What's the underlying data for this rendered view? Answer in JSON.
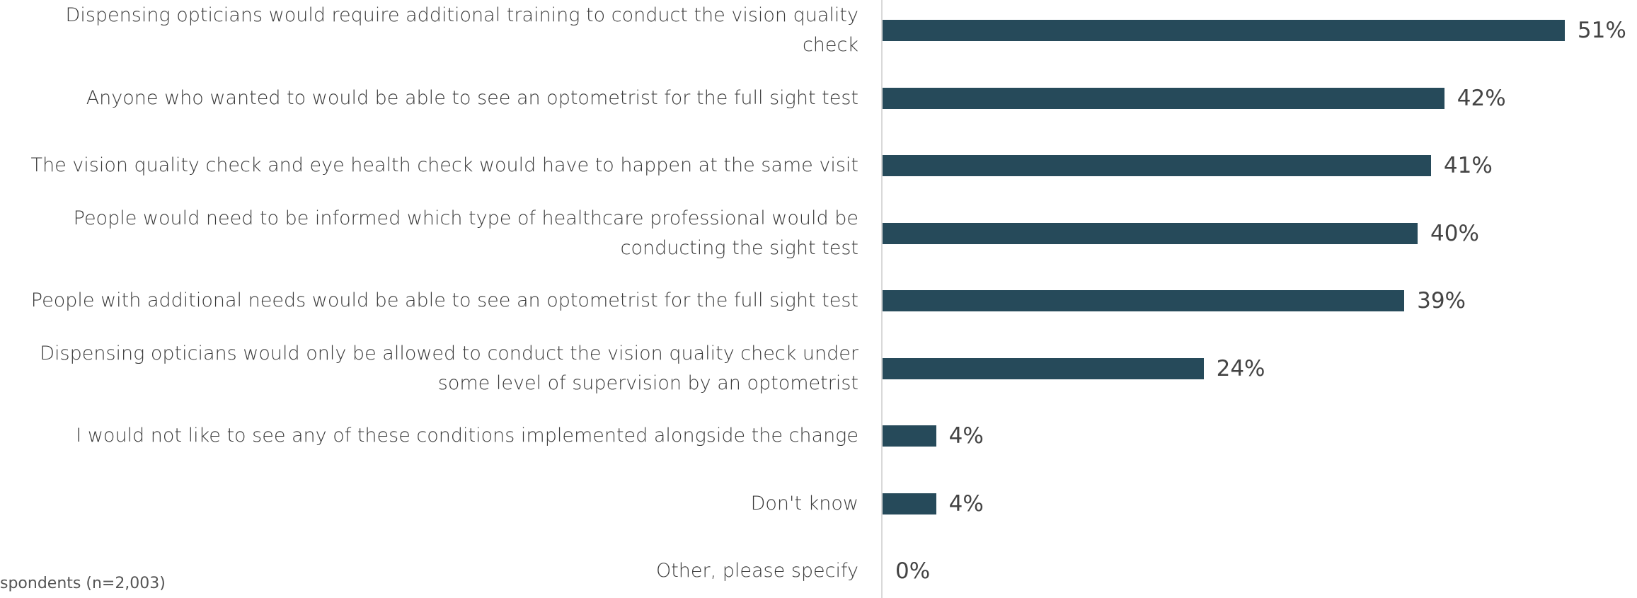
{
  "chart_data": {
    "type": "bar",
    "orientation": "horizontal",
    "categories": [
      "Dispensing opticians would require additional training to conduct the vision quality check",
      "Anyone who wanted to would be able to see an optometrist for the full sight test",
      "The vision quality check and eye health check would have to happen at the same visit",
      "People would need to be informed which type of healthcare professional would be conducting the sight test",
      "People with additional needs would be able to see an optometrist for the full sight test",
      "Dispensing opticians would only be allowed to conduct the vision quality check under some level of supervision by an optometrist",
      "I would not like to see any of these conditions implemented alongside the change",
      "Don't know",
      "Other, please specify"
    ],
    "values": [
      51,
      42,
      41,
      40,
      39,
      24,
      4,
      4,
      0
    ],
    "value_labels": [
      "51%",
      "42%",
      "41%",
      "40%",
      "39%",
      "24%",
      "4%",
      "4%",
      "0%"
    ],
    "color": "#264a5a",
    "footnote": "spondents (n=2,003)"
  }
}
